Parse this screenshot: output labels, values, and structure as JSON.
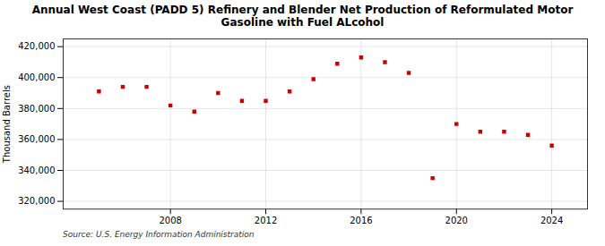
{
  "chart_data": {
    "type": "scatter",
    "title": "Annual West Coast (PADD 5) Refinery and Blender Net Production of Reformulated Motor\nGasoline with Fuel ALcohol",
    "ylabel": "Thousand Barrels",
    "caption": "Source: U.S. Energy Information Administration",
    "x": [
      2005,
      2006,
      2007,
      2008,
      2009,
      2010,
      2011,
      2012,
      2013,
      2014,
      2015,
      2016,
      2017,
      2018,
      2019,
      2020,
      2021,
      2022,
      2023,
      2024
    ],
    "values": [
      391000,
      394000,
      394000,
      382000,
      378000,
      390000,
      385000,
      385000,
      391000,
      399000,
      409000,
      413000,
      410000,
      403000,
      335000,
      370000,
      365000,
      365000,
      363000,
      356000
    ],
    "color": "#cc0000",
    "marker": "square",
    "xlim": [
      2003.5,
      2025.5
    ],
    "xticks": [
      2008,
      2012,
      2016,
      2020,
      2024
    ],
    "ylim": [
      315000,
      425000
    ],
    "yticks": [
      {
        "value": 320000,
        "label": "320,000"
      },
      {
        "value": 340000,
        "label": "340,000"
      },
      {
        "value": 360000,
        "label": "360,000"
      },
      {
        "value": 380000,
        "label": "380,000"
      },
      {
        "value": 400000,
        "label": "400,000"
      },
      {
        "value": 420000,
        "label": "420,000"
      }
    ],
    "grid": true
  }
}
